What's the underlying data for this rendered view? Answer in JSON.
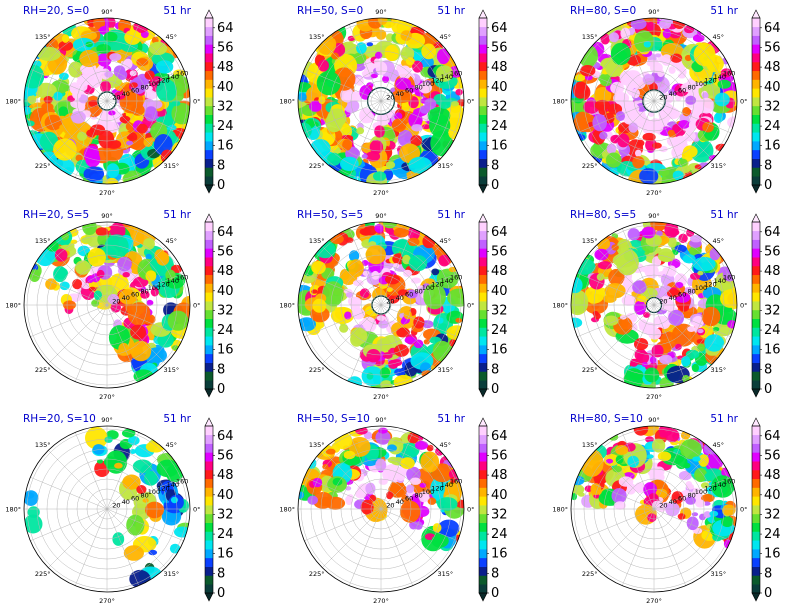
{
  "colorbar": {
    "tick_labels": [
      "0",
      "8",
      "16",
      "24",
      "32",
      "40",
      "48",
      "56",
      "64"
    ],
    "colors": [
      "#0a3d3a",
      "#0b5a2c",
      "#0a1f8c",
      "#0a40ff",
      "#00a8ff",
      "#00e6f0",
      "#00e6a0",
      "#00e040",
      "#66e030",
      "#c0e640",
      "#ffe600",
      "#ffb400",
      "#ff6a00",
      "#ff1a1a",
      "#ff0080",
      "#e000ff",
      "#c060ff",
      "#e0a0ff",
      "#ffd0ff"
    ]
  },
  "panels": [
    {
      "title": "RH=20, S=0",
      "time": "51 hr",
      "col": 0,
      "row": 0,
      "activity": 1.0,
      "coverage": "full",
      "eye": 0.12,
      "ranges": [
        "20",
        "40",
        "60",
        "80",
        "100",
        "120",
        "140",
        "160"
      ]
    },
    {
      "title": "RH=50, S=0",
      "time": "51 hr",
      "col": 1,
      "row": 0,
      "activity": 1.0,
      "coverage": "full",
      "eye": 0.18,
      "ranges": [
        "20",
        "40",
        "60",
        "80",
        "100",
        "120",
        "140",
        "160"
      ]
    },
    {
      "title": "RH=80, S=0",
      "time": "51 hr",
      "col": 2,
      "row": 0,
      "activity": 1.25,
      "coverage": "full",
      "eye": 0.15,
      "ranges": [
        "20",
        "40",
        "60",
        "80",
        "100",
        "120",
        "140",
        "160"
      ]
    },
    {
      "title": "RH=20, S=5",
      "time": "51 hr",
      "col": 0,
      "row": 1,
      "activity": 0.9,
      "coverage": "north",
      "eye": 0.0,
      "ranges": [
        "20",
        "40",
        "60",
        "80",
        "100",
        "120",
        "140",
        "160"
      ]
    },
    {
      "title": "RH=50, S=5",
      "time": "51 hr",
      "col": 1,
      "row": 1,
      "activity": 1.0,
      "coverage": "most",
      "eye": 0.12,
      "ranges": [
        "20",
        "40",
        "60",
        "80",
        "100",
        "120",
        "140",
        "160"
      ]
    },
    {
      "title": "RH=80, S=5",
      "time": "51 hr",
      "col": 2,
      "row": 1,
      "activity": 1.1,
      "coverage": "most",
      "eye": 0.1,
      "ranges": [
        "20",
        "40",
        "60",
        "80",
        "100",
        "120",
        "140",
        "160"
      ]
    },
    {
      "title": "RH=20, S=10",
      "time": "51 hr",
      "col": 0,
      "row": 2,
      "activity": 0.8,
      "coverage": "sparse",
      "eye": 0.0,
      "ranges": [
        "20",
        "40",
        "60",
        "80",
        "100",
        "120",
        "140",
        "160"
      ]
    },
    {
      "title": "RH=50, S=10",
      "time": "51 hr",
      "col": 1,
      "row": 2,
      "activity": 1.1,
      "coverage": "ne",
      "eye": 0.0,
      "ranges": [
        "20",
        "40",
        "60",
        "80",
        "100",
        "120",
        "140",
        "160"
      ]
    },
    {
      "title": "RH=80, S=10",
      "time": "51 hr",
      "col": 2,
      "row": 2,
      "activity": 1.1,
      "coverage": "ne",
      "eye": 0.0,
      "ranges": [
        "20",
        "40",
        "60",
        "80",
        "100",
        "120",
        "140",
        "160"
      ]
    }
  ],
  "angle_labels": [
    {
      "deg": 0,
      "text": "0°"
    },
    {
      "deg": 45,
      "text": "45°"
    },
    {
      "deg": 90,
      "text": "90°"
    },
    {
      "deg": 135,
      "text": "135°"
    },
    {
      "deg": 180,
      "text": "180°"
    },
    {
      "deg": 225,
      "text": "225°"
    },
    {
      "deg": 270,
      "text": "270°"
    },
    {
      "deg": 315,
      "text": "315°"
    }
  ],
  "chart_data": {
    "type": "heatmap",
    "subplot_type": "polar",
    "rows": 3,
    "cols": 3,
    "panel_titles": [
      "RH=20, S=0",
      "RH=50, S=0",
      "RH=80, S=0",
      "RH=20, S=5",
      "RH=50, S=5",
      "RH=80, S=5",
      "RH=20, S=10",
      "RH=50, S=10",
      "RH=80, S=10"
    ],
    "time_label": "51 hr",
    "radial_ticks": [
      20,
      40,
      60,
      80,
      100,
      120,
      140,
      160
    ],
    "angular_ticks_deg": [
      0,
      45,
      90,
      135,
      180,
      225,
      270,
      315
    ],
    "colorbar_ticks": [
      0,
      8,
      16,
      24,
      32,
      40,
      48,
      56,
      64
    ],
    "colorbar_range": [
      0,
      68
    ],
    "grid": true
  }
}
